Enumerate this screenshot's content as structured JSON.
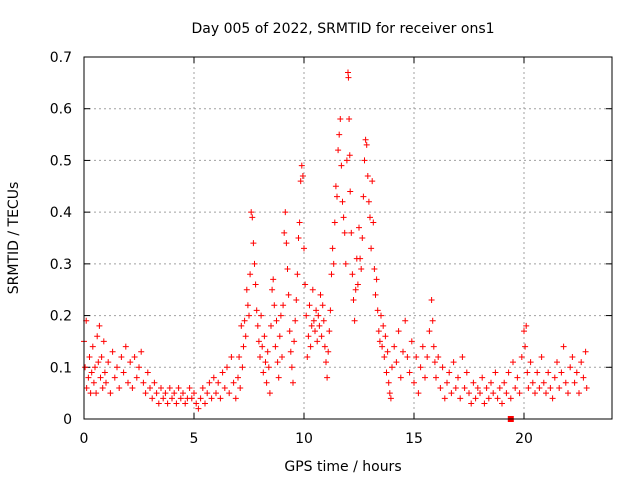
{
  "chart_data": {
    "type": "scatter",
    "title": "Day 005 of 2022, SRMTID for receiver ons1",
    "xlabel": "GPS time / hours",
    "ylabel": "SRMTID / TECUs",
    "xlim": [
      0,
      24
    ],
    "ylim": [
      0,
      0.7
    ],
    "xticks": [
      0,
      5,
      10,
      15,
      20
    ],
    "yticks": [
      0,
      0.1,
      0.2,
      0.3,
      0.4,
      0.5,
      0.6,
      0.7
    ],
    "xtick_labels": [
      "0",
      "5",
      "10",
      "15",
      "20"
    ],
    "ytick_labels": [
      "0",
      "0.1",
      "0.2",
      "0.3",
      "0.4",
      "0.5",
      "0.6",
      "0.7"
    ],
    "grid": true,
    "marker": "+",
    "color": "#ff0000",
    "series": [
      {
        "name": "SRMTID",
        "points": [
          [
            0.0,
            0.15
          ],
          [
            0.05,
            0.1
          ],
          [
            0.1,
            0.19
          ],
          [
            0.12,
            0.06
          ],
          [
            0.2,
            0.08
          ],
          [
            0.25,
            0.12
          ],
          [
            0.3,
            0.05
          ],
          [
            0.35,
            0.09
          ],
          [
            0.4,
            0.14
          ],
          [
            0.45,
            0.07
          ],
          [
            0.5,
            0.1
          ],
          [
            0.55,
            0.05
          ],
          [
            0.6,
            0.16
          ],
          [
            0.65,
            0.11
          ],
          [
            0.7,
            0.18
          ],
          [
            0.75,
            0.08
          ],
          [
            0.8,
            0.12
          ],
          [
            0.85,
            0.06
          ],
          [
            0.9,
            0.15
          ],
          [
            0.95,
            0.09
          ],
          [
            1.0,
            0.07
          ],
          [
            1.1,
            0.11
          ],
          [
            1.2,
            0.05
          ],
          [
            1.3,
            0.13
          ],
          [
            1.4,
            0.08
          ],
          [
            1.5,
            0.1
          ],
          [
            1.6,
            0.06
          ],
          [
            1.7,
            0.12
          ],
          [
            1.8,
            0.09
          ],
          [
            1.9,
            0.14
          ],
          [
            2.0,
            0.07
          ],
          [
            2.1,
            0.11
          ],
          [
            2.2,
            0.06
          ],
          [
            2.3,
            0.12
          ],
          [
            2.4,
            0.08
          ],
          [
            2.5,
            0.1
          ],
          [
            2.6,
            0.13
          ],
          [
            2.7,
            0.07
          ],
          [
            2.8,
            0.05
          ],
          [
            2.9,
            0.09
          ],
          [
            3.0,
            0.06
          ],
          [
            3.1,
            0.04
          ],
          [
            3.2,
            0.07
          ],
          [
            3.3,
            0.05
          ],
          [
            3.4,
            0.03
          ],
          [
            3.5,
            0.06
          ],
          [
            3.6,
            0.04
          ],
          [
            3.7,
            0.05
          ],
          [
            3.8,
            0.03
          ],
          [
            3.9,
            0.06
          ],
          [
            4.0,
            0.04
          ],
          [
            4.1,
            0.05
          ],
          [
            4.2,
            0.03
          ],
          [
            4.3,
            0.06
          ],
          [
            4.4,
            0.04
          ],
          [
            4.5,
            0.05
          ],
          [
            4.6,
            0.03
          ],
          [
            4.7,
            0.04
          ],
          [
            4.8,
            0.06
          ],
          [
            4.9,
            0.04
          ],
          [
            5.0,
            0.05
          ],
          [
            5.1,
            0.03
          ],
          [
            5.2,
            0.02
          ],
          [
            5.3,
            0.04
          ],
          [
            5.4,
            0.06
          ],
          [
            5.5,
            0.03
          ],
          [
            5.6,
            0.05
          ],
          [
            5.7,
            0.07
          ],
          [
            5.8,
            0.04
          ],
          [
            5.9,
            0.08
          ],
          [
            6.0,
            0.05
          ],
          [
            6.1,
            0.07
          ],
          [
            6.2,
            0.04
          ],
          [
            6.3,
            0.09
          ],
          [
            6.4,
            0.06
          ],
          [
            6.5,
            0.1
          ],
          [
            6.6,
            0.05
          ],
          [
            6.7,
            0.12
          ],
          [
            6.8,
            0.07
          ],
          [
            6.9,
            0.04
          ],
          [
            7.0,
            0.08
          ],
          [
            7.05,
            0.12
          ],
          [
            7.1,
            0.06
          ],
          [
            7.15,
            0.18
          ],
          [
            7.2,
            0.1
          ],
          [
            7.25,
            0.14
          ],
          [
            7.3,
            0.19
          ],
          [
            7.35,
            0.16
          ],
          [
            7.4,
            0.25
          ],
          [
            7.45,
            0.22
          ],
          [
            7.5,
            0.2
          ],
          [
            7.55,
            0.28
          ],
          [
            7.6,
            0.4
          ],
          [
            7.65,
            0.39
          ],
          [
            7.7,
            0.34
          ],
          [
            7.75,
            0.3
          ],
          [
            7.8,
            0.26
          ],
          [
            7.85,
            0.21
          ],
          [
            7.9,
            0.18
          ],
          [
            7.95,
            0.15
          ],
          [
            8.0,
            0.12
          ],
          [
            8.05,
            0.2
          ],
          [
            8.1,
            0.14
          ],
          [
            8.15,
            0.09
          ],
          [
            8.2,
            0.16
          ],
          [
            8.25,
            0.11
          ],
          [
            8.3,
            0.07
          ],
          [
            8.35,
            0.13
          ],
          [
            8.4,
            0.1
          ],
          [
            8.45,
            0.05
          ],
          [
            8.5,
            0.18
          ],
          [
            8.55,
            0.25
          ],
          [
            8.6,
            0.27
          ],
          [
            8.65,
            0.22
          ],
          [
            8.7,
            0.14
          ],
          [
            8.75,
            0.19
          ],
          [
            8.8,
            0.11
          ],
          [
            8.85,
            0.08
          ],
          [
            8.9,
            0.16
          ],
          [
            8.95,
            0.2
          ],
          [
            9.0,
            0.12
          ],
          [
            9.05,
            0.22
          ],
          [
            9.1,
            0.36
          ],
          [
            9.15,
            0.4
          ],
          [
            9.2,
            0.34
          ],
          [
            9.25,
            0.29
          ],
          [
            9.3,
            0.24
          ],
          [
            9.35,
            0.17
          ],
          [
            9.4,
            0.13
          ],
          [
            9.45,
            0.1
          ],
          [
            9.5,
            0.07
          ],
          [
            9.55,
            0.15
          ],
          [
            9.6,
            0.19
          ],
          [
            9.65,
            0.23
          ],
          [
            9.7,
            0.28
          ],
          [
            9.75,
            0.35
          ],
          [
            9.8,
            0.38
          ],
          [
            9.85,
            0.46
          ],
          [
            9.9,
            0.49
          ],
          [
            9.95,
            0.47
          ],
          [
            10.0,
            0.33
          ],
          [
            10.05,
            0.26
          ],
          [
            10.1,
            0.2
          ],
          [
            10.15,
            0.12
          ],
          [
            10.2,
            0.16
          ],
          [
            10.25,
            0.22
          ],
          [
            10.3,
            0.14
          ],
          [
            10.35,
            0.18
          ],
          [
            10.4,
            0.25
          ],
          [
            10.45,
            0.19
          ],
          [
            10.5,
            0.17
          ],
          [
            10.55,
            0.21
          ],
          [
            10.6,
            0.15
          ],
          [
            10.65,
            0.2
          ],
          [
            10.7,
            0.18
          ],
          [
            10.75,
            0.24
          ],
          [
            10.8,
            0.16
          ],
          [
            10.85,
            0.22
          ],
          [
            10.9,
            0.19
          ],
          [
            10.95,
            0.14
          ],
          [
            11.0,
            0.11
          ],
          [
            11.05,
            0.08
          ],
          [
            11.1,
            0.13
          ],
          [
            11.15,
            0.17
          ],
          [
            11.2,
            0.21
          ],
          [
            11.25,
            0.28
          ],
          [
            11.3,
            0.33
          ],
          [
            11.35,
            0.3
          ],
          [
            11.4,
            0.38
          ],
          [
            11.45,
            0.45
          ],
          [
            11.5,
            0.43
          ],
          [
            11.55,
            0.52
          ],
          [
            11.6,
            0.55
          ],
          [
            11.65,
            0.58
          ],
          [
            11.7,
            0.49
          ],
          [
            11.75,
            0.42
          ],
          [
            11.8,
            0.39
          ],
          [
            11.85,
            0.36
          ],
          [
            11.9,
            0.3
          ],
          [
            11.95,
            0.5
          ],
          [
            12.0,
            0.67
          ],
          [
            12.02,
            0.66
          ],
          [
            12.05,
            0.58
          ],
          [
            12.08,
            0.51
          ],
          [
            12.1,
            0.44
          ],
          [
            12.15,
            0.36
          ],
          [
            12.2,
            0.28
          ],
          [
            12.25,
            0.23
          ],
          [
            12.3,
            0.19
          ],
          [
            12.35,
            0.25
          ],
          [
            12.4,
            0.31
          ],
          [
            12.45,
            0.26
          ],
          [
            12.5,
            0.37
          ],
          [
            12.55,
            0.31
          ],
          [
            12.6,
            0.29
          ],
          [
            12.65,
            0.35
          ],
          [
            12.7,
            0.43
          ],
          [
            12.75,
            0.5
          ],
          [
            12.8,
            0.54
          ],
          [
            12.85,
            0.53
          ],
          [
            12.9,
            0.47
          ],
          [
            12.95,
            0.42
          ],
          [
            13.0,
            0.39
          ],
          [
            13.05,
            0.33
          ],
          [
            13.1,
            0.46
          ],
          [
            13.15,
            0.38
          ],
          [
            13.2,
            0.29
          ],
          [
            13.25,
            0.24
          ],
          [
            13.3,
            0.27
          ],
          [
            13.35,
            0.21
          ],
          [
            13.4,
            0.17
          ],
          [
            13.45,
            0.15
          ],
          [
            13.5,
            0.2
          ],
          [
            13.55,
            0.14
          ],
          [
            13.6,
            0.18
          ],
          [
            13.65,
            0.12
          ],
          [
            13.7,
            0.16
          ],
          [
            13.75,
            0.09
          ],
          [
            13.8,
            0.13
          ],
          [
            13.85,
            0.07
          ],
          [
            13.9,
            0.05
          ],
          [
            13.95,
            0.04
          ],
          [
            14.0,
            0.1
          ],
          [
            14.1,
            0.14
          ],
          [
            14.2,
            0.11
          ],
          [
            14.3,
            0.17
          ],
          [
            14.4,
            0.08
          ],
          [
            14.5,
            0.13
          ],
          [
            14.6,
            0.19
          ],
          [
            14.7,
            0.12
          ],
          [
            14.8,
            0.09
          ],
          [
            14.9,
            0.15
          ],
          [
            15.0,
            0.07
          ],
          [
            15.1,
            0.12
          ],
          [
            15.2,
            0.05
          ],
          [
            15.3,
            0.1
          ],
          [
            15.4,
            0.14
          ],
          [
            15.5,
            0.08
          ],
          [
            15.6,
            0.12
          ],
          [
            15.7,
            0.17
          ],
          [
            15.8,
            0.23
          ],
          [
            15.85,
            0.19
          ],
          [
            15.9,
            0.14
          ],
          [
            15.95,
            0.11
          ],
          [
            16.0,
            0.08
          ],
          [
            16.1,
            0.12
          ],
          [
            16.2,
            0.06
          ],
          [
            16.3,
            0.1
          ],
          [
            16.4,
            0.04
          ],
          [
            16.5,
            0.07
          ],
          [
            16.6,
            0.09
          ],
          [
            16.7,
            0.05
          ],
          [
            16.8,
            0.11
          ],
          [
            16.9,
            0.06
          ],
          [
            17.0,
            0.08
          ],
          [
            17.1,
            0.04
          ],
          [
            17.2,
            0.12
          ],
          [
            17.3,
            0.06
          ],
          [
            17.4,
            0.09
          ],
          [
            17.5,
            0.05
          ],
          [
            17.6,
            0.03
          ],
          [
            17.7,
            0.07
          ],
          [
            17.8,
            0.04
          ],
          [
            17.9,
            0.06
          ],
          [
            18.0,
            0.05
          ],
          [
            18.1,
            0.08
          ],
          [
            18.2,
            0.03
          ],
          [
            18.3,
            0.06
          ],
          [
            18.4,
            0.04
          ],
          [
            18.5,
            0.07
          ],
          [
            18.6,
            0.05
          ],
          [
            18.7,
            0.09
          ],
          [
            18.8,
            0.04
          ],
          [
            18.9,
            0.06
          ],
          [
            19.0,
            0.03
          ],
          [
            19.1,
            0.07
          ],
          [
            19.2,
            0.05
          ],
          [
            19.3,
            0.09
          ],
          [
            19.4,
            0.04
          ],
          [
            19.5,
            0.11
          ],
          [
            19.6,
            0.06
          ],
          [
            19.7,
            0.08
          ],
          [
            19.8,
            0.05
          ],
          [
            19.9,
            0.12
          ],
          [
            20.0,
            0.17
          ],
          [
            20.05,
            0.14
          ],
          [
            20.1,
            0.18
          ],
          [
            20.15,
            0.09
          ],
          [
            20.2,
            0.06
          ],
          [
            20.3,
            0.11
          ],
          [
            20.4,
            0.07
          ],
          [
            20.5,
            0.05
          ],
          [
            20.6,
            0.09
          ],
          [
            20.7,
            0.06
          ],
          [
            20.8,
            0.12
          ],
          [
            20.9,
            0.07
          ],
          [
            21.0,
            0.05
          ],
          [
            21.1,
            0.09
          ],
          [
            21.2,
            0.06
          ],
          [
            21.3,
            0.04
          ],
          [
            21.4,
            0.08
          ],
          [
            21.5,
            0.11
          ],
          [
            21.6,
            0.06
          ],
          [
            21.7,
            0.09
          ],
          [
            21.8,
            0.14
          ],
          [
            21.9,
            0.07
          ],
          [
            22.0,
            0.05
          ],
          [
            22.1,
            0.1
          ],
          [
            22.2,
            0.12
          ],
          [
            22.3,
            0.07
          ],
          [
            22.4,
            0.09
          ],
          [
            22.5,
            0.05
          ],
          [
            22.6,
            0.11
          ],
          [
            22.7,
            0.08
          ],
          [
            22.8,
            0.13
          ],
          [
            22.85,
            0.06
          ]
        ]
      }
    ],
    "special_points": [
      {
        "x": 19.4,
        "y": 0.0,
        "marker": "square"
      }
    ]
  }
}
